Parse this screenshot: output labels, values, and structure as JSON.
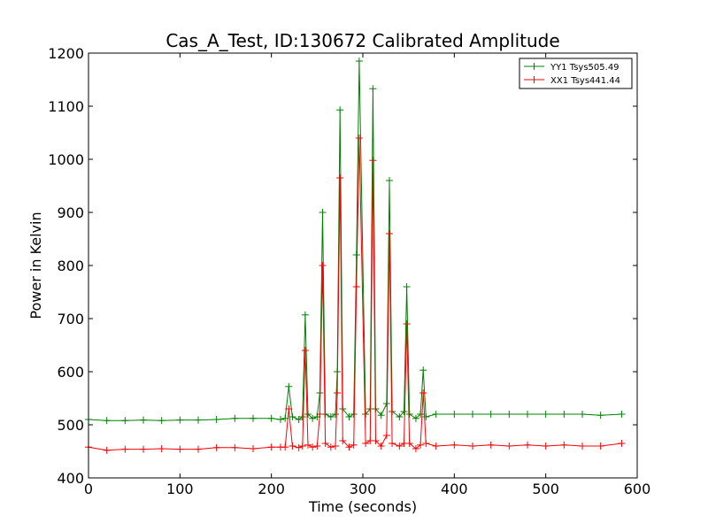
{
  "chart_data": {
    "type": "line",
    "title": "Cas_A_Test, ID:130672 Calibrated Amplitude",
    "xlabel": "Time (seconds)",
    "ylabel": "Power in Kelvin",
    "xlim": [
      0,
      600
    ],
    "ylim": [
      400,
      1200
    ],
    "xticks": [
      0,
      100,
      200,
      300,
      400,
      500,
      600
    ],
    "yticks": [
      400,
      500,
      600,
      700,
      800,
      900,
      1000,
      1100,
      1200
    ],
    "grid": false,
    "legend_position": "top-right",
    "series": [
      {
        "name": "YY1 Tsys505.49",
        "color": "#008000",
        "marker": "+",
        "x": [
          0,
          20,
          40,
          60,
          80,
          100,
          120,
          140,
          160,
          180,
          200,
          210,
          215,
          219,
          223,
          230,
          234,
          237,
          240,
          245,
          250,
          253,
          256,
          259,
          265,
          270,
          272,
          275,
          278,
          285,
          290,
          293,
          296,
          303,
          308,
          311,
          314,
          320,
          326,
          329,
          332,
          340,
          345,
          348,
          351,
          358,
          363,
          366,
          369,
          380,
          400,
          420,
          440,
          460,
          480,
          500,
          520,
          540,
          560,
          583
        ],
        "y": [
          510,
          508,
          508,
          509,
          508,
          509,
          509,
          510,
          512,
          512,
          512,
          510,
          512,
          572,
          515,
          510,
          515,
          707,
          520,
          512,
          515,
          560,
          900,
          520,
          515,
          520,
          600,
          1093,
          530,
          515,
          520,
          820,
          1185,
          520,
          530,
          1133,
          530,
          518,
          540,
          960,
          525,
          515,
          525,
          760,
          520,
          512,
          520,
          603,
          515,
          520,
          520,
          520,
          520,
          520,
          520,
          520,
          520,
          520,
          518,
          520
        ]
      },
      {
        "name": "XX1 Tsys441.44",
        "color": "#ff0000",
        "marker": "+",
        "x": [
          0,
          20,
          40,
          60,
          80,
          100,
          120,
          140,
          160,
          180,
          200,
          210,
          215,
          219,
          223,
          230,
          234,
          237,
          240,
          245,
          250,
          253,
          256,
          259,
          265,
          270,
          272,
          275,
          278,
          285,
          290,
          293,
          296,
          303,
          308,
          311,
          314,
          320,
          326,
          329,
          332,
          340,
          345,
          348,
          351,
          358,
          363,
          366,
          369,
          380,
          400,
          420,
          440,
          460,
          480,
          500,
          520,
          540,
          560,
          583
        ],
        "y": [
          458,
          452,
          454,
          454,
          455,
          454,
          454,
          457,
          457,
          455,
          458,
          458,
          458,
          530,
          460,
          457,
          460,
          640,
          462,
          458,
          460,
          520,
          800,
          465,
          458,
          460,
          560,
          965,
          470,
          458,
          462,
          760,
          1040,
          465,
          470,
          998,
          470,
          460,
          480,
          860,
          465,
          460,
          465,
          690,
          465,
          455,
          462,
          560,
          465,
          460,
          462,
          460,
          462,
          460,
          462,
          460,
          462,
          460,
          460,
          465
        ]
      }
    ]
  }
}
